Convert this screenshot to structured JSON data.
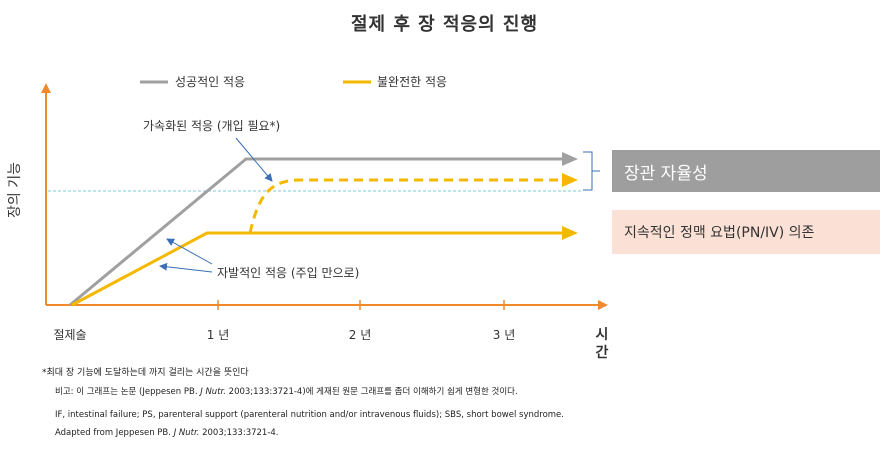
{
  "title": "절제 후 장 적응의 진행",
  "legend": {
    "successful": "성공적인 적응",
    "incomplete": "불완전한 적응"
  },
  "y_axis_label": "장의 기능",
  "x_axis": {
    "label_top": "시",
    "label_bottom": "간",
    "ticks": [
      "절제술",
      "1 년",
      "2 년",
      "3 년"
    ]
  },
  "annotations": {
    "accelerated": "가속화된 적응 (개입 필요*)",
    "spontaneous": "자발적인 적응 (주입 만으로)"
  },
  "boxes": {
    "autonomy": "장관 자율성",
    "dependence": "지속적인 정맥 요법(PN/IV) 의존"
  },
  "colors": {
    "successful": "#a0a0a0",
    "incomplete": "#f5b800",
    "axis": "#f08a2c",
    "threshold": "#7fc8d8",
    "arrow": "#3a6fb5"
  },
  "footnotes": {
    "asterisk": "*최대 장 기능에 도달하는데 까지 걸리는 시간을 뜻인다",
    "note_prefix": "비고: 이 그래프는 논문 (Jeppesen PB. ",
    "note_journal": "J Nutr.",
    "note_suffix": " 2003;133:3721-4)에 게재된 원문 그래프를 좀더 이해하기 쉽게 변형한 것이다.",
    "abbrev": "IF, intestinal failure; PS, parenteral support (parenteral nutrition and/or intravenous fluids); SBS, short bowel syndrome.",
    "adapted_prefix": "Adapted from Jeppesen PB. ",
    "adapted_journal": "J Nutr.",
    "adapted_suffix": " 2003;133:3721-4."
  }
}
